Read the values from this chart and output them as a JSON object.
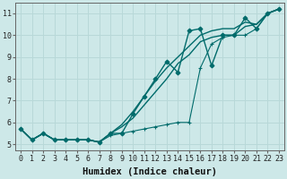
{
  "xlabel": "Humidex (Indice chaleur)",
  "bg_color": "#cde8e8",
  "line_color": "#006b6b",
  "grid_color": "#b8d8d8",
  "xlim": [
    -0.5,
    23.5
  ],
  "ylim": [
    4.7,
    11.5
  ],
  "xticks": [
    0,
    1,
    2,
    3,
    4,
    5,
    6,
    7,
    8,
    9,
    10,
    11,
    12,
    13,
    14,
    15,
    16,
    17,
    18,
    19,
    20,
    21,
    22,
    23
  ],
  "yticks": [
    5,
    6,
    7,
    8,
    9,
    10,
    11
  ],
  "series": [
    {
      "x": [
        0,
        1,
        2,
        3,
        4,
        5,
        6,
        7,
        8,
        9,
        10,
        11,
        12,
        13,
        14,
        15,
        16,
        17,
        18,
        19,
        20,
        21,
        22,
        23
      ],
      "y": [
        5.7,
        5.2,
        5.5,
        5.2,
        5.2,
        5.2,
        5.2,
        5.1,
        5.5,
        5.5,
        6.4,
        7.2,
        8.0,
        8.8,
        8.3,
        10.2,
        10.3,
        8.6,
        10.0,
        10.0,
        10.8,
        10.3,
        11.0,
        11.2
      ],
      "marker": "D",
      "markersize": 2.5,
      "lw": 1.0
    },
    {
      "x": [
        0,
        1,
        2,
        3,
        4,
        5,
        6,
        7,
        8,
        9,
        10,
        11,
        12,
        13,
        14,
        15,
        16,
        17,
        18,
        19,
        20,
        21,
        22,
        23
      ],
      "y": [
        5.7,
        5.2,
        5.5,
        5.2,
        5.2,
        5.2,
        5.2,
        5.1,
        5.5,
        5.9,
        6.5,
        7.2,
        7.9,
        8.5,
        9.0,
        9.5,
        10.0,
        10.2,
        10.3,
        10.3,
        10.6,
        10.5,
        11.0,
        11.2
      ],
      "marker": null,
      "markersize": 0,
      "lw": 1.0
    },
    {
      "x": [
        0,
        1,
        2,
        3,
        4,
        5,
        6,
        7,
        8,
        9,
        10,
        11,
        12,
        13,
        14,
        15,
        16,
        17,
        18,
        19,
        20,
        21,
        22,
        23
      ],
      "y": [
        5.7,
        5.2,
        5.5,
        5.2,
        5.2,
        5.2,
        5.2,
        5.1,
        5.5,
        5.8,
        6.2,
        6.8,
        7.4,
        8.0,
        8.7,
        9.1,
        9.7,
        9.9,
        10.0,
        10.0,
        10.4,
        10.5,
        11.0,
        11.2
      ],
      "marker": null,
      "markersize": 0,
      "lw": 1.0
    },
    {
      "x": [
        0,
        1,
        2,
        3,
        4,
        5,
        6,
        7,
        8,
        9,
        10,
        11,
        12,
        13,
        14,
        15,
        16,
        17,
        18,
        19,
        20,
        21,
        22,
        23
      ],
      "y": [
        5.7,
        5.2,
        5.5,
        5.2,
        5.2,
        5.2,
        5.2,
        5.1,
        5.4,
        5.5,
        5.6,
        5.7,
        5.8,
        5.9,
        6.0,
        6.0,
        8.5,
        9.6,
        9.9,
        10.0,
        10.0,
        10.3,
        11.0,
        11.2
      ],
      "marker": "+",
      "markersize": 3.5,
      "lw": 0.8
    }
  ],
  "xlabel_fontsize": 7.5,
  "tick_fontsize": 6.0
}
